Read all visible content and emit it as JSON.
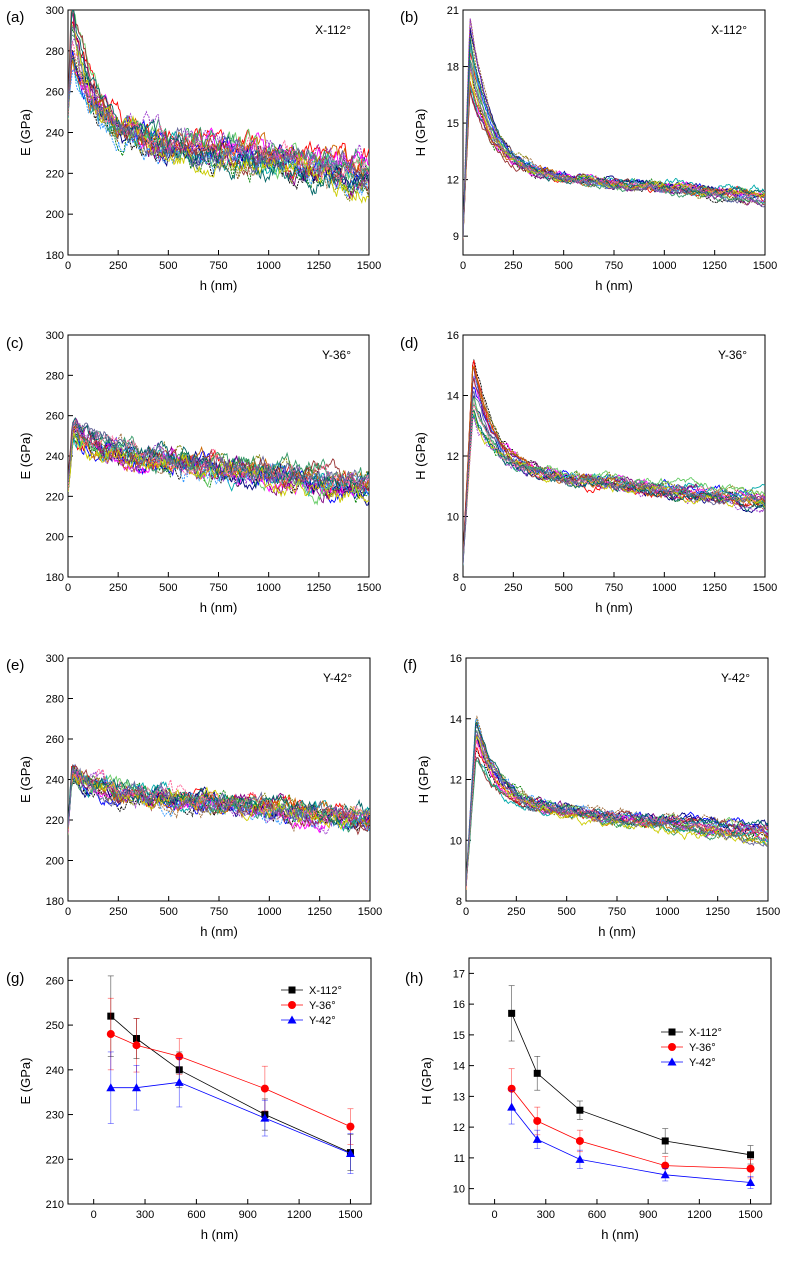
{
  "figure": {
    "description_panels": [
      "a",
      "b",
      "c",
      "d",
      "e",
      "f",
      "g",
      "h"
    ]
  },
  "chart_data": [
    {
      "id": "a",
      "panel_label": "(a)",
      "type": "line",
      "annotation": "X-112°",
      "xlabel": "h (nm)",
      "ylabel": "E (GPa)",
      "xlim": [
        0,
        1500
      ],
      "ylim": [
        180,
        300
      ],
      "xticks": [
        0,
        250,
        500,
        750,
        1000,
        1250,
        1500
      ],
      "yticks": [
        180,
        200,
        220,
        240,
        260,
        280,
        300
      ],
      "curve_family": {
        "count": 20,
        "start": 250,
        "peak": 290,
        "peak_at": 20,
        "plateau": 240,
        "end": 220,
        "spread": 5,
        "noise": 7,
        "seed": 11
      }
    },
    {
      "id": "b",
      "panel_label": "(b)",
      "type": "line",
      "annotation": "X-112°",
      "xlabel": "h (nm)",
      "ylabel": "H (GPa)",
      "xlim": [
        0,
        1500
      ],
      "ylim": [
        8,
        21
      ],
      "xticks": [
        0,
        250,
        500,
        750,
        1000,
        1250,
        1500
      ],
      "yticks": [
        9,
        12,
        15,
        18,
        21
      ],
      "curve_family": {
        "count": 20,
        "start": 9,
        "peak": 18.5,
        "peak_at": 35,
        "plateau": 12.5,
        "end": 11.1,
        "spread": 0.35,
        "noise": 0.25,
        "seed": 23
      }
    },
    {
      "id": "c",
      "panel_label": "(c)",
      "type": "line",
      "annotation": "Y-36°",
      "xlabel": "h (nm)",
      "ylabel": "E (GPa)",
      "xlim": [
        0,
        1500
      ],
      "ylim": [
        180,
        300
      ],
      "xticks": [
        0,
        250,
        500,
        750,
        1000,
        1250,
        1500
      ],
      "yticks": [
        180,
        200,
        220,
        240,
        260,
        280,
        300
      ],
      "curve_family": {
        "count": 20,
        "start": 225,
        "peak": 255,
        "peak_at": 25,
        "plateau": 243,
        "end": 225,
        "spread": 4,
        "noise": 6,
        "seed": 37
      }
    },
    {
      "id": "d",
      "panel_label": "(d)",
      "type": "line",
      "annotation": "Y-36°",
      "xlabel": "h (nm)",
      "ylabel": "H (GPa)",
      "xlim": [
        0,
        1500
      ],
      "ylim": [
        8,
        16
      ],
      "xticks": [
        0,
        250,
        500,
        750,
        1000,
        1250,
        1500
      ],
      "yticks": [
        8,
        10,
        12,
        14,
        16
      ],
      "curve_family": {
        "count": 20,
        "start": 8.5,
        "peak": 14.3,
        "peak_at": 50,
        "plateau": 11.6,
        "end": 10.6,
        "spread": 0.3,
        "noise": 0.18,
        "seed": 41
      }
    },
    {
      "id": "e",
      "panel_label": "(e)",
      "type": "line",
      "annotation": "Y-42°",
      "xlabel": "h (nm)",
      "ylabel": "E (GPa)",
      "xlim": [
        0,
        1500
      ],
      "ylim": [
        180,
        300
      ],
      "xticks": [
        0,
        250,
        500,
        750,
        1000,
        1250,
        1500
      ],
      "yticks": [
        180,
        200,
        220,
        240,
        260,
        280,
        300
      ],
      "curve_family": {
        "count": 20,
        "start": 215,
        "peak": 245,
        "peak_at": 20,
        "plateau": 236,
        "end": 220,
        "spread": 4,
        "noise": 5,
        "seed": 53
      }
    },
    {
      "id": "f",
      "panel_label": "(f)",
      "type": "line",
      "annotation": "Y-42°",
      "xlabel": "h (nm)",
      "ylabel": "H (GPa)",
      "xlim": [
        0,
        1500
      ],
      "ylim": [
        8,
        16
      ],
      "xticks": [
        0,
        250,
        500,
        750,
        1000,
        1250,
        1500
      ],
      "yticks": [
        8,
        10,
        12,
        14,
        16
      ],
      "curve_family": {
        "count": 20,
        "start": 8.5,
        "peak": 13.4,
        "peak_at": 50,
        "plateau": 11.3,
        "end": 10.2,
        "spread": 0.3,
        "noise": 0.18,
        "seed": 67
      }
    },
    {
      "id": "g",
      "panel_label": "(g)",
      "type": "line",
      "xlabel": "h (nm)",
      "ylabel": "E (GPa)",
      "xlim": [
        -150,
        1620
      ],
      "ylim": [
        210,
        265
      ],
      "xticks": [
        0,
        300,
        600,
        900,
        1200,
        1500
      ],
      "yticks": [
        210,
        220,
        230,
        240,
        250,
        260
      ],
      "x": [
        100,
        250,
        500,
        1000,
        1500
      ],
      "series": [
        {
          "name": "X-112°",
          "color": "#000000",
          "marker": "square",
          "values": [
            252,
            247,
            240,
            230,
            221.5
          ],
          "errors": [
            9,
            4.5,
            4,
            3.5,
            4
          ]
        },
        {
          "name": "Y-36°",
          "color": "#ff0000",
          "marker": "circle",
          "values": [
            248,
            245.5,
            243,
            235.8,
            227.3
          ],
          "errors": [
            8,
            6,
            4,
            5,
            4
          ]
        },
        {
          "name": "Y-42°",
          "color": "#0000ff",
          "marker": "triangle",
          "values": [
            236,
            236,
            237.2,
            229.2,
            221.3
          ],
          "errors": [
            8,
            5,
            5.5,
            4,
            4.5
          ]
        }
      ],
      "legend": "top-right"
    },
    {
      "id": "h",
      "panel_label": "(h)",
      "type": "line",
      "xlabel": "h (nm)",
      "ylabel": "H (GPa)",
      "xlim": [
        -150,
        1620
      ],
      "ylim": [
        9.5,
        17.5
      ],
      "xticks": [
        0,
        300,
        600,
        900,
        1200,
        1500
      ],
      "yticks": [
        10,
        11,
        12,
        13,
        14,
        15,
        16,
        17
      ],
      "x": [
        100,
        250,
        500,
        1000,
        1500
      ],
      "series": [
        {
          "name": "X-112°",
          "color": "#000000",
          "marker": "square",
          "values": [
            15.7,
            13.75,
            12.55,
            11.55,
            11.1
          ],
          "errors": [
            0.9,
            0.55,
            0.3,
            0.4,
            0.3
          ]
        },
        {
          "name": "Y-36°",
          "color": "#ff0000",
          "marker": "circle",
          "values": [
            13.25,
            12.2,
            11.55,
            10.75,
            10.65
          ],
          "errors": [
            0.65,
            0.45,
            0.35,
            0.3,
            0.3
          ]
        },
        {
          "name": "Y-42°",
          "color": "#0000ff",
          "marker": "triangle",
          "values": [
            12.65,
            11.6,
            10.95,
            10.45,
            10.2
          ],
          "errors": [
            0.55,
            0.3,
            0.3,
            0.2,
            0.2
          ]
        }
      ],
      "legend": "top-right"
    }
  ]
}
